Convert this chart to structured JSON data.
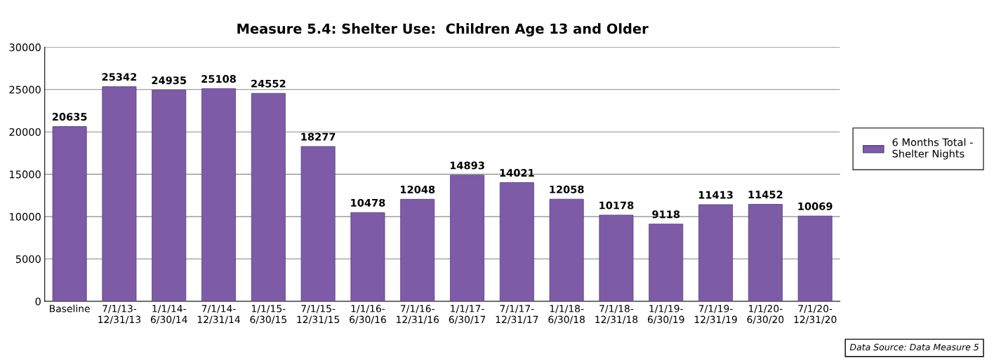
{
  "chart_data": {
    "type": "bar",
    "title": "Measure 5.4: Shelter Use:  Children Age 13 and Older",
    "categories": [
      "Baseline",
      "7/1/13-\n12/31/13",
      "1/1/14-\n6/30/14",
      "7/1/14-\n12/31/14",
      "1/1/15-\n6/30/15",
      "7/1/15-\n12/31/15",
      "1/1/16-\n6/30/16",
      "7/1/16-\n12/31/16",
      "1/1/17-\n6/30/17",
      "7/1/17-\n12/31/17",
      "1/1/18-\n6/30/18",
      "7/1/18-\n12/31/18",
      "1/1/19-\n6/30/19",
      "7/1/19-\n12/31/19",
      "1/1/20-\n6/30/20",
      "7/1/20-\n12/31/20"
    ],
    "series": [
      {
        "name": "6 Months Total -\nShelter Nights",
        "color": "#7d5ba6",
        "values": [
          20635,
          25342,
          24935,
          25108,
          24552,
          18277,
          10478,
          12048,
          14893,
          14021,
          12058,
          10178,
          9118,
          11413,
          11452,
          10069
        ]
      }
    ],
    "ylim": [
      0,
      30000
    ],
    "yticks": [
      0,
      5000,
      10000,
      15000,
      20000,
      25000,
      30000
    ],
    "grid": "y",
    "legend": "right",
    "data_labels": true,
    "annotations": [
      "Data Source: Data Measure 5"
    ]
  }
}
